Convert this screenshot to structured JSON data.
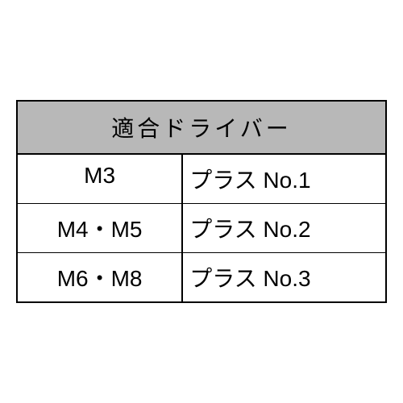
{
  "table": {
    "type": "table",
    "header": "適合ドライバー",
    "header_background": "#b8b8b8",
    "border_color": "#000000",
    "background_color": "#ffffff",
    "font_size": 28,
    "columns": [
      "size",
      "driver"
    ],
    "rows": [
      {
        "size": "M3",
        "driver": "プラス No.1"
      },
      {
        "size": "M4・M5",
        "driver": "プラス No.2"
      },
      {
        "size": "M6・M8",
        "driver": "プラス No.3"
      }
    ]
  }
}
